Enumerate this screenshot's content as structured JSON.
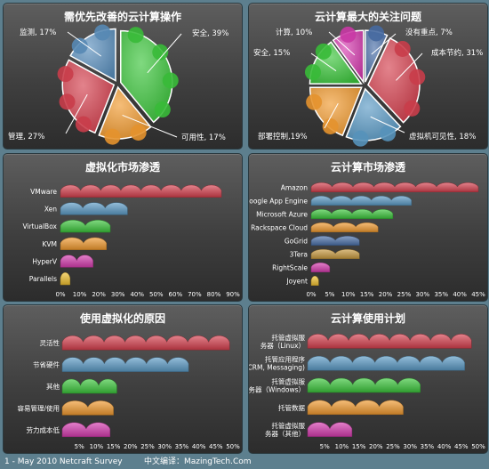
{
  "footer": {
    "left": "1 - May 2010 Netcraft Survey",
    "right": "中文编译：MazingTech.Com"
  },
  "chart_data": [
    {
      "type": "pie",
      "title": "需优先改善的云计算操作",
      "slices": [
        {
          "label": "安全, 39%",
          "value": 39,
          "color": "#3cc43c"
        },
        {
          "label": "可用性, 17%",
          "value": 17,
          "color": "#f09a30"
        },
        {
          "label": "管理, 27%",
          "value": 27,
          "color": "#d4404e"
        },
        {
          "label": "监测, 17%",
          "value": 17,
          "color": "#5b8fbd"
        }
      ]
    },
    {
      "type": "pie",
      "title": "云计算最大的关注问题",
      "slices": [
        {
          "label": "没有重点, 7%",
          "value": 7,
          "color": "#4a6fa8"
        },
        {
          "label": "成本节约, 31%",
          "value": 31,
          "color": "#d4404e"
        },
        {
          "label": "虚拟机可见性, 18%",
          "value": 18,
          "color": "#5b9ac4"
        },
        {
          "label": "部署控制,19%",
          "value": 19,
          "color": "#f09a30"
        },
        {
          "label": "安全, 15%",
          "value": 15,
          "color": "#3cc43c"
        },
        {
          "label": "计算, 10%",
          "value": 10,
          "color": "#d43cae"
        }
      ]
    },
    {
      "type": "bar",
      "title": "虚拟化市场渗透",
      "categories": [
        "VMware",
        "Xen",
        "VirtualBox",
        "KVM",
        "HyperV",
        "Parallels"
      ],
      "values": [
        84,
        35,
        26,
        24,
        17,
        5
      ],
      "colors": [
        "#d4404e",
        "#5b9ac4",
        "#3cc43c",
        "#f09a30",
        "#d43cae",
        "#f0c030"
      ],
      "xticks": [
        "0%",
        "10%",
        "20%",
        "30%",
        "40%",
        "50%",
        "60%",
        "70%",
        "80%",
        "90%"
      ],
      "xlim": [
        0,
        90
      ]
    },
    {
      "type": "bar",
      "title": "云计算市场渗透",
      "categories": [
        "Amazon",
        "Google App Engine",
        "Microsoft Azure",
        "Rackspace Cloud",
        "GoGrid",
        "3Tera",
        "RightScale",
        "Joyent"
      ],
      "values": [
        45,
        27,
        22,
        18,
        13,
        13,
        5,
        2
      ],
      "colors": [
        "#d4404e",
        "#5b9ac4",
        "#3cc43c",
        "#f09a30",
        "#4a6fa8",
        "#c89a40",
        "#d43cae",
        "#f0c030"
      ],
      "xticks": [
        "0%",
        "5%",
        "10%",
        "15%",
        "20%",
        "25%",
        "30%",
        "35%",
        "40%",
        "45%"
      ],
      "xlim": [
        0,
        45
      ]
    },
    {
      "type": "bar",
      "title": "使用虚拟化的原因",
      "categories": [
        "灵活性",
        "节省硬件",
        "其他",
        "容易管理/使用",
        "劳力成本低"
      ],
      "values": [
        49,
        37,
        16,
        15,
        14
      ],
      "colors": [
        "#d4404e",
        "#5b9ac4",
        "#3cc43c",
        "#f09a30",
        "#d43cae"
      ],
      "xticks": [
        "",
        "5%",
        "10%",
        "15%",
        "20%",
        "25%",
        "30%",
        "35%",
        "40%",
        "45%",
        "50%"
      ],
      "xlim": [
        0,
        50
      ]
    },
    {
      "type": "bar",
      "title": "云计算使用计划",
      "categories": [
        "托管虚拟服务器（Linux）",
        "托管应用程序(CRM, Messaging)",
        "托管虚拟服务器（Windows）",
        "托管数据",
        "托管虚拟服务器（其他）"
      ],
      "values": [
        48,
        46,
        33,
        28,
        13
      ],
      "colors": [
        "#d4404e",
        "#5b9ac4",
        "#3cc43c",
        "#f09a30",
        "#d43cae"
      ],
      "xticks": [
        "",
        "5%",
        "10%",
        "15%",
        "20%",
        "25%",
        "30%",
        "35%",
        "40%",
        "45%",
        "50%"
      ],
      "xlim": [
        0,
        50
      ]
    }
  ]
}
